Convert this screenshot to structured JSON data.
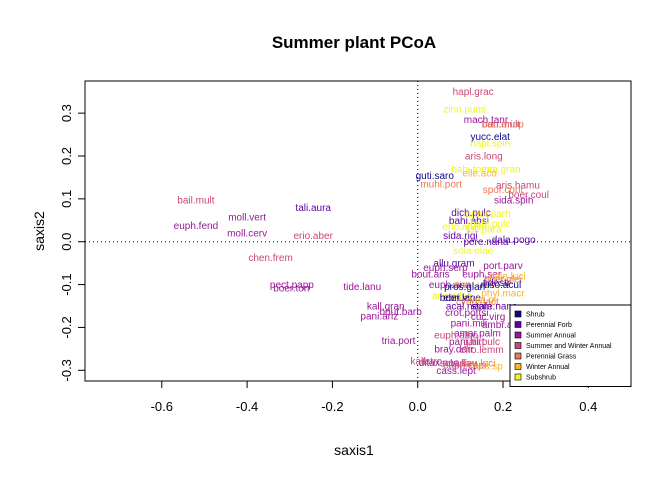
{
  "chart_data": {
    "type": "scatter",
    "title": "Summer plant PCoA",
    "xlabel": "saxis1",
    "ylabel": "saxis2",
    "xlim": [
      -0.78,
      0.5
    ],
    "ylim": [
      -0.325,
      0.375
    ],
    "xticks": [
      -0.6,
      -0.4,
      -0.2,
      0.0,
      0.2,
      0.4
    ],
    "xtick_labels": [
      "-0.6",
      "-0.4",
      "-0.2",
      "0.0",
      "0.2",
      "0.4"
    ],
    "yticks": [
      -0.3,
      -0.2,
      -0.1,
      0.0,
      0.1,
      0.2,
      0.3
    ],
    "ytick_labels": [
      "-0.3",
      "-0.2",
      "-0.1",
      "0.0",
      "0.1",
      "0.2",
      "0.3"
    ],
    "reference_lines": {
      "vertical_x": 0.0,
      "horizontal_y": 0.0,
      "style": "dotted"
    },
    "legend_position": "bottom-right",
    "groups": [
      {
        "name": "Shrub",
        "color": "#0d0887"
      },
      {
        "name": "Perennial Forb",
        "color": "#5b02a3"
      },
      {
        "name": "Summer Annual",
        "color": "#9a179b"
      },
      {
        "name": "Summer and Winter Annual",
        "color": "#cb4678"
      },
      {
        "name": "Perennial Grass",
        "color": "#eb7852"
      },
      {
        "name": "Winter Annual",
        "color": "#fbb32f"
      },
      {
        "name": "Subshrub",
        "color": "#eff821"
      }
    ],
    "points": [
      {
        "label": "hapl.grac",
        "x": 0.13,
        "y": 0.35,
        "group": 3
      },
      {
        "label": "zinn.pumi",
        "x": 0.11,
        "y": 0.31,
        "group": 6
      },
      {
        "label": "mach.tanr",
        "x": 0.16,
        "y": 0.285,
        "group": 2
      },
      {
        "label": "ban.mult",
        "x": 0.195,
        "y": 0.275,
        "group": 3
      },
      {
        "label": "bou.eriop",
        "x": 0.2,
        "y": 0.275,
        "group": 4
      },
      {
        "label": "yucc.elat",
        "x": 0.17,
        "y": 0.245,
        "group": 0
      },
      {
        "label": "hapl.spin",
        "x": 0.17,
        "y": 0.23,
        "group": 6
      },
      {
        "label": "aris.long",
        "x": 0.155,
        "y": 0.2,
        "group": 3
      },
      {
        "label": "bahi.tomo",
        "x": 0.13,
        "y": 0.17,
        "group": 6
      },
      {
        "label": "eria.gran",
        "x": 0.195,
        "y": 0.17,
        "group": 6
      },
      {
        "label": "elle.aco",
        "x": 0.145,
        "y": 0.16,
        "group": 5
      },
      {
        "label": "guti.saro",
        "x": 0.04,
        "y": 0.155,
        "group": 0
      },
      {
        "label": "muhl.port",
        "x": 0.055,
        "y": 0.135,
        "group": 4
      },
      {
        "label": "aris.hamu",
        "x": 0.235,
        "y": 0.132,
        "group": 3
      },
      {
        "label": "spor.cont",
        "x": 0.2,
        "y": 0.122,
        "group": 4
      },
      {
        "label": "boer.coul",
        "x": 0.26,
        "y": 0.11,
        "group": 3
      },
      {
        "label": "sida.spin",
        "x": 0.225,
        "y": 0.097,
        "group": 2
      },
      {
        "label": "dich.pulc",
        "x": 0.125,
        "y": 0.068,
        "group": 1
      },
      {
        "label": "amor.parh",
        "x": 0.165,
        "y": 0.066,
        "group": 6
      },
      {
        "label": "bahi.absi",
        "x": 0.12,
        "y": 0.05,
        "group": 1
      },
      {
        "label": "bahi.pulc",
        "x": 0.17,
        "y": 0.042,
        "group": 6
      },
      {
        "label": "erio.abeta",
        "x": 0.11,
        "y": 0.035,
        "group": 6
      },
      {
        "label": "fall.para",
        "x": 0.155,
        "y": 0.03,
        "group": 6
      },
      {
        "label": "sida.rigi",
        "x": 0.1,
        "y": 0.015,
        "group": 1
      },
      {
        "label": "dala.pogo",
        "x": 0.225,
        "y": 0.005,
        "group": 1
      },
      {
        "label": "pere.nana",
        "x": 0.16,
        "y": 0.0,
        "group": 1
      },
      {
        "label": "sola.elae",
        "x": 0.13,
        "y": -0.02,
        "group": 6
      },
      {
        "label": "bail.mult",
        "x": -0.52,
        "y": 0.097,
        "group": 3
      },
      {
        "label": "tali.aura",
        "x": -0.245,
        "y": 0.08,
        "group": 1
      },
      {
        "label": "moll.vert",
        "x": -0.4,
        "y": 0.058,
        "group": 2
      },
      {
        "label": "euph.fend",
        "x": -0.52,
        "y": 0.038,
        "group": 2
      },
      {
        "label": "moll.cerv",
        "x": -0.4,
        "y": 0.02,
        "group": 2
      },
      {
        "label": "erio.aber",
        "x": -0.245,
        "y": 0.015,
        "group": 3
      },
      {
        "label": "chen.frem",
        "x": -0.345,
        "y": -0.037,
        "group": 3
      },
      {
        "label": "allu.gram",
        "x": 0.085,
        "y": -0.05,
        "group": 1
      },
      {
        "label": "port.parv",
        "x": 0.2,
        "y": -0.055,
        "group": 2
      },
      {
        "label": "euph.serp",
        "x": 0.065,
        "y": -0.06,
        "group": 2
      },
      {
        "label": "bout.aris",
        "x": 0.03,
        "y": -0.075,
        "group": 2
      },
      {
        "label": "euph.ser",
        "x": 0.15,
        "y": -0.075,
        "group": 2
      },
      {
        "label": "dale.luci",
        "x": 0.21,
        "y": -0.08,
        "group": 5
      },
      {
        "label": "boer.glei",
        "x": 0.2,
        "y": -0.087,
        "group": 4
      },
      {
        "label": "euph.ana",
        "x": 0.075,
        "y": -0.1,
        "group": 2
      },
      {
        "label": "mont.vert",
        "x": 0.13,
        "y": -0.1,
        "group": 5
      },
      {
        "label": "pros.glan",
        "x": 0.11,
        "y": -0.105,
        "group": 0
      },
      {
        "label": "tidestr",
        "x": 0.185,
        "y": -0.095,
        "group": 1
      },
      {
        "label": "ruso.acul",
        "x": 0.195,
        "y": -0.1,
        "group": 0
      },
      {
        "label": "pect.papp",
        "x": -0.295,
        "y": -0.1,
        "group": 2
      },
      {
        "label": "boer.torr",
        "x": -0.295,
        "y": -0.108,
        "group": 2
      },
      {
        "label": "tide.lanu",
        "x": -0.13,
        "y": -0.105,
        "group": 2
      },
      {
        "label": "aris.adsc",
        "x": 0.08,
        "y": -0.125,
        "group": 6
      },
      {
        "label": "phyl.macr",
        "x": 0.2,
        "y": -0.12,
        "group": 5
      },
      {
        "label": "ebri.vir",
        "x": 0.095,
        "y": -0.13,
        "group": 1
      },
      {
        "label": "boer.lane",
        "x": 0.1,
        "y": -0.13,
        "group": 0
      },
      {
        "label": "chia.pl",
        "x": 0.15,
        "y": -0.135,
        "group": 5
      },
      {
        "label": "cynd.dact",
        "x": 0.14,
        "y": -0.14,
        "group": 4
      },
      {
        "label": "acal.neom",
        "x": 0.12,
        "y": -0.15,
        "group": 1
      },
      {
        "label": "stale.nana",
        "x": 0.18,
        "y": -0.15,
        "group": 1
      },
      {
        "label": "kall.gran",
        "x": -0.075,
        "y": -0.15,
        "group": 2
      },
      {
        "label": "bout.barb",
        "x": -0.04,
        "y": -0.163,
        "group": 2
      },
      {
        "label": "pani.ariz",
        "x": -0.09,
        "y": -0.173,
        "group": 2
      },
      {
        "label": "crot.pottsi",
        "x": 0.115,
        "y": -0.165,
        "group": 2
      },
      {
        "label": "cuc.virg",
        "x": 0.165,
        "y": -0.175,
        "group": 2
      },
      {
        "label": "pani.mili",
        "x": 0.12,
        "y": -0.19,
        "group": 2
      },
      {
        "label": "ambr.acan",
        "x": 0.205,
        "y": -0.193,
        "group": 2
      },
      {
        "label": "amar.palm",
        "x": 0.14,
        "y": -0.213,
        "group": 2
      },
      {
        "label": "euph.albo",
        "x": 0.09,
        "y": -0.218,
        "group": 3
      },
      {
        "label": "tria.port",
        "x": -0.045,
        "y": -0.23,
        "group": 2
      },
      {
        "label": "pani.hirt",
        "x": 0.115,
        "y": -0.233,
        "group": 2
      },
      {
        "label": "gail.pulc",
        "x": 0.15,
        "y": -0.233,
        "group": 3
      },
      {
        "label": "bray.dorr",
        "x": 0.085,
        "y": -0.25,
        "group": 2
      },
      {
        "label": "erio.lemm",
        "x": 0.15,
        "y": -0.252,
        "group": 3
      },
      {
        "label": "kallstro",
        "x": 0.02,
        "y": -0.278,
        "group": 3
      },
      {
        "label": "ditax.neo",
        "x": 0.05,
        "y": -0.282,
        "group": 2
      },
      {
        "label": "sola.flav",
        "x": 0.095,
        "y": -0.283,
        "group": 3
      },
      {
        "label": "dicu.luci",
        "x": 0.14,
        "y": -0.283,
        "group": 4
      },
      {
        "label": "euph.capi",
        "x": 0.11,
        "y": -0.288,
        "group": 3
      },
      {
        "label": "aris.sp",
        "x": 0.165,
        "y": -0.29,
        "group": 5
      },
      {
        "label": "cass.lept",
        "x": 0.09,
        "y": -0.3,
        "group": 2
      }
    ]
  }
}
